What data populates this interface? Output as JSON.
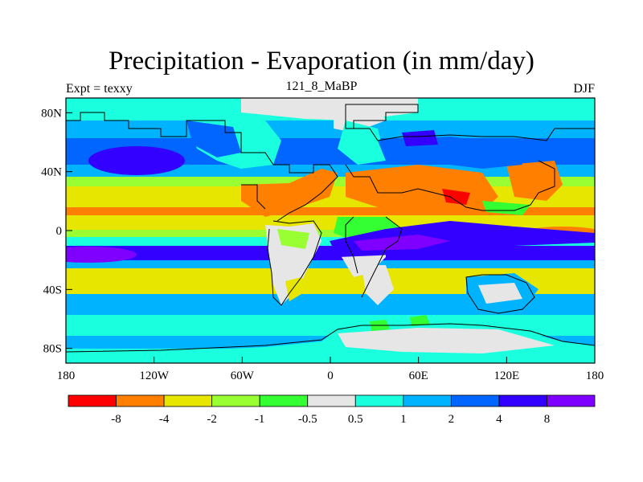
{
  "title": "Precipitation - Evaporation (in mm/day)",
  "left_string": "Expt = texxy",
  "center_string": "121_8_MaBP",
  "right_string": "DJF",
  "map": {
    "lon_range": [
      -180,
      180
    ],
    "lat_range": [
      -90,
      90
    ],
    "x_ticks": [
      {
        "value": -180,
        "label": "180"
      },
      {
        "value": -120,
        "label": "120W"
      },
      {
        "value": -60,
        "label": "60W"
      },
      {
        "value": 0,
        "label": "0"
      },
      {
        "value": 60,
        "label": "60E"
      },
      {
        "value": 120,
        "label": "120E"
      },
      {
        "value": 180,
        "label": "180"
      }
    ],
    "y_ticks": [
      {
        "value": 80,
        "label": "80N"
      },
      {
        "value": 40,
        "label": "40N"
      },
      {
        "value": 0,
        "label": "0"
      },
      {
        "value": -40,
        "label": "40S"
      },
      {
        "value": -80,
        "label": "80S"
      }
    ]
  },
  "colorbar": {
    "colors": [
      "#ff0000",
      "#ff8000",
      "#e6e600",
      "#99ff33",
      "#33ff33",
      "#e6e6e6",
      "#1affdd",
      "#00b3ff",
      "#0066ff",
      "#3300ff",
      "#8000ff"
    ],
    "labels": [
      "-8",
      "-4",
      "-2",
      "-1",
      "-0.5",
      "0.5",
      "1",
      "2",
      "4",
      "8"
    ]
  }
}
